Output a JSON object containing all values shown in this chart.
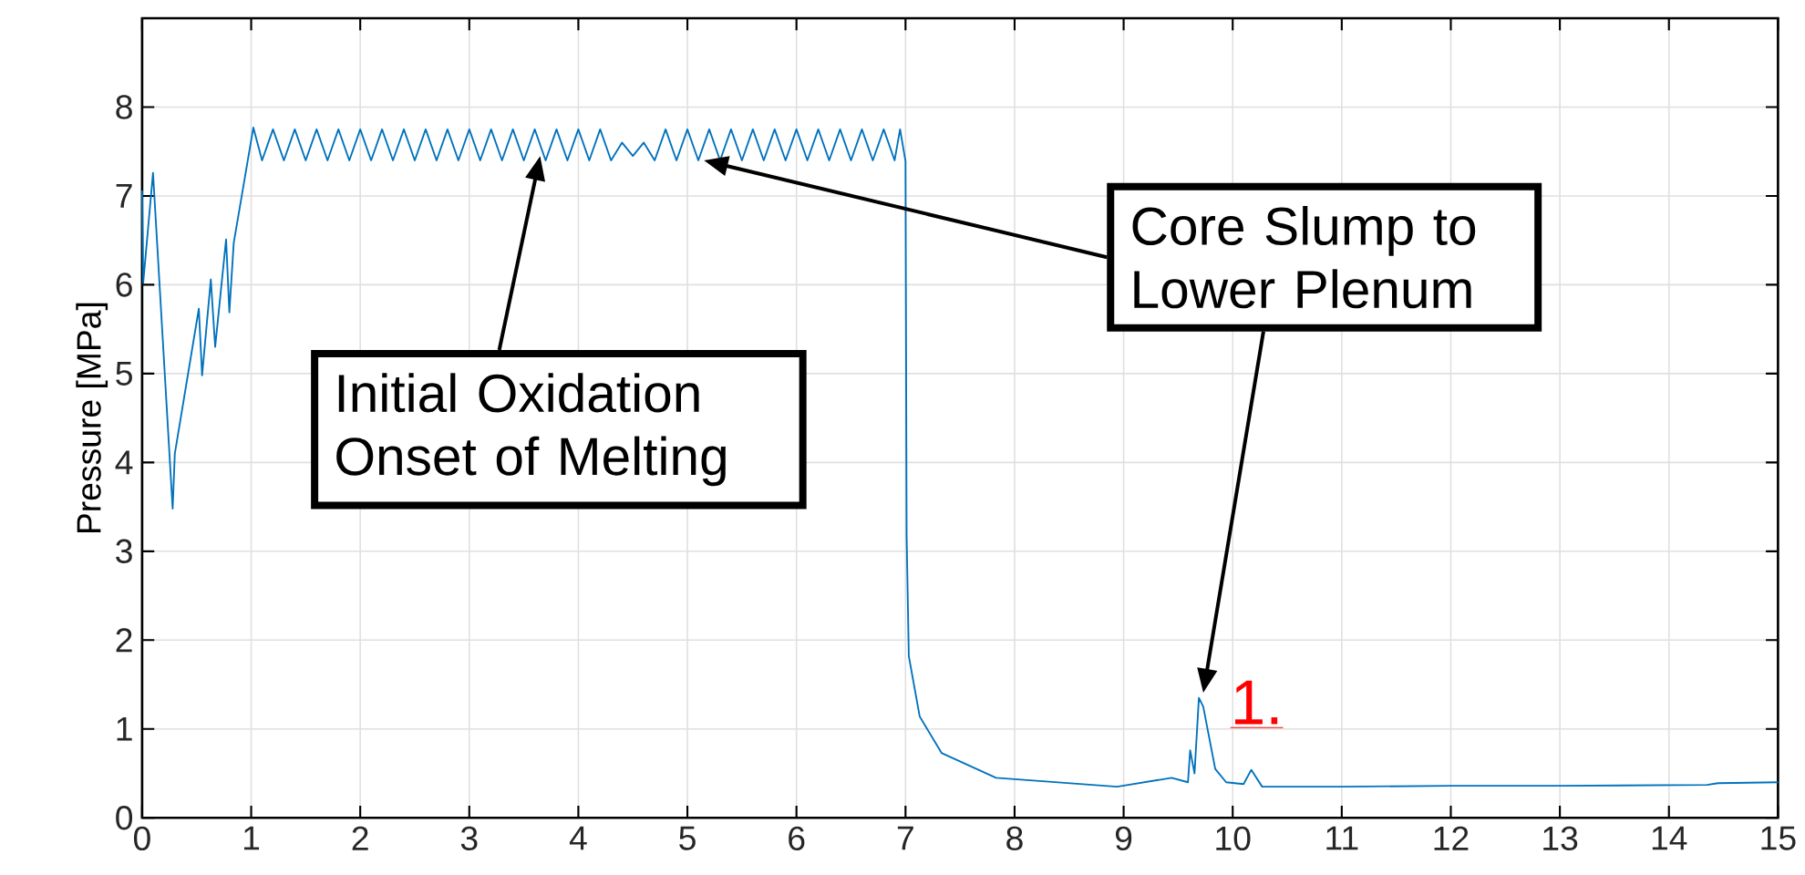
{
  "chart_data": {
    "type": "line",
    "ylabel": "Pressure [MPa]",
    "xlim": [
      0,
      15
    ],
    "ylim": [
      0,
      9
    ],
    "xticks": [
      0,
      1,
      2,
      3,
      4,
      5,
      6,
      7,
      8,
      9,
      10,
      11,
      12,
      13,
      14,
      15
    ],
    "yticks": [
      0,
      1,
      2,
      3,
      4,
      5,
      6,
      7,
      8
    ],
    "grid": true,
    "line_style": "solid",
    "marker": "none",
    "x": [
      0,
      0.01,
      0.1,
      0.28,
      0.3,
      0.52,
      0.55,
      0.63,
      0.67,
      0.77,
      0.8,
      0.84,
      1.02,
      1.1,
      1.2,
      1.3,
      1.4,
      1.5,
      1.6,
      1.7,
      1.8,
      1.9,
      2.0,
      2.1,
      2.2,
      2.3,
      2.4,
      2.5,
      2.6,
      2.7,
      2.8,
      2.9,
      3.0,
      3.1,
      3.2,
      3.3,
      3.4,
      3.5,
      3.6,
      3.7,
      3.8,
      3.9,
      4.0,
      4.1,
      4.2,
      4.3,
      4.4,
      4.5,
      4.6,
      4.7,
      4.8,
      4.9,
      5.0,
      5.1,
      5.2,
      5.3,
      5.4,
      5.5,
      5.6,
      5.7,
      5.8,
      5.9,
      6.0,
      6.1,
      6.2,
      6.3,
      6.4,
      6.5,
      6.6,
      6.7,
      6.8,
      6.9,
      6.95,
      7.0,
      7.01,
      7.03,
      7.13,
      7.33,
      7.83,
      8.94,
      9.34,
      9.44,
      9.59,
      9.61,
      9.65,
      9.69,
      9.73,
      9.84,
      9.94,
      10.1,
      10.17,
      10.27,
      11,
      12,
      13,
      14.35,
      14.45,
      15
    ],
    "series": [
      {
        "color": "#0072bd",
        "values": [
          7.06,
          6.02,
          7.26,
          3.48,
          4.1,
          5.73,
          4.98,
          6.06,
          5.3,
          6.51,
          5.69,
          6.47,
          7.77,
          7.4,
          7.75,
          7.4,
          7.75,
          7.4,
          7.75,
          7.4,
          7.75,
          7.4,
          7.75,
          7.4,
          7.75,
          7.4,
          7.75,
          7.4,
          7.75,
          7.4,
          7.75,
          7.4,
          7.75,
          7.4,
          7.75,
          7.4,
          7.75,
          7.4,
          7.75,
          7.4,
          7.75,
          7.4,
          7.75,
          7.4,
          7.75,
          7.4,
          7.6,
          7.45,
          7.6,
          7.4,
          7.75,
          7.4,
          7.75,
          7.4,
          7.75,
          7.4,
          7.75,
          7.4,
          7.75,
          7.4,
          7.75,
          7.4,
          7.75,
          7.4,
          7.75,
          7.4,
          7.75,
          7.4,
          7.75,
          7.4,
          7.75,
          7.4,
          7.75,
          7.39,
          3.18,
          1.82,
          1.14,
          0.73,
          0.45,
          0.35,
          0.43,
          0.45,
          0.4,
          0.76,
          0.5,
          1.35,
          1.25,
          0.55,
          0.4,
          0.38,
          0.54,
          0.35,
          0.35,
          0.36,
          0.36,
          0.37,
          0.39,
          0.4
        ]
      }
    ],
    "annotations": [
      "Initial Oxidation Onset of Melting",
      "Core Slump to Lower Plenum",
      {
        "text": "1.",
        "x": 9.73,
        "y": 1.35
      }
    ]
  }
}
